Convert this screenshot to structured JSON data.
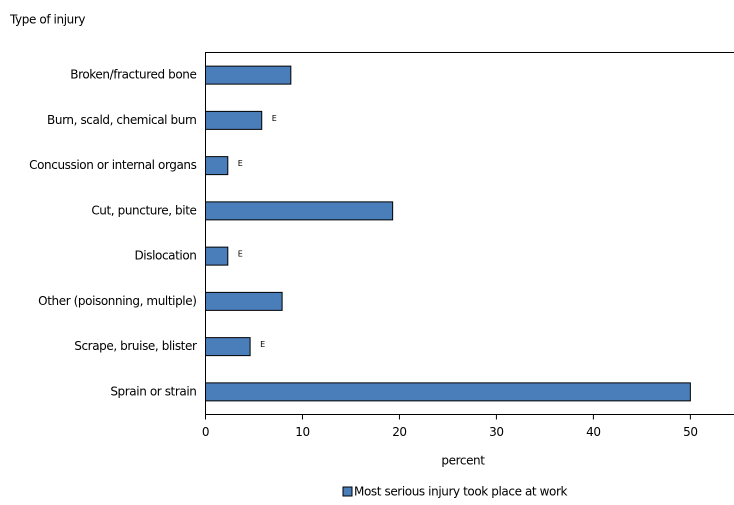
{
  "chart_data": {
    "type": "hbar",
    "y_axis_title": "Type of injury",
    "x_axis_title": "percent",
    "categories": [
      "Broken/fractured bone",
      "Burn, scald, chemical burn",
      "Concussion or internal organs",
      "Cut, puncture, bite",
      "Dislocation",
      "Other (poisonning, multiple)",
      "Scrape, bruise, blister",
      "Sprain or strain"
    ],
    "series": [
      {
        "name": "Most serious injury took place at work",
        "color": "#4a7ebb",
        "values": [
          8.8,
          5.8,
          2.3,
          19.3,
          2.3,
          7.9,
          4.6,
          50.0
        ]
      }
    ],
    "annotations": [
      null,
      "E",
      "E",
      null,
      "E",
      null,
      "E",
      null
    ],
    "xlim": [
      0,
      54.5
    ],
    "xticks": [
      0,
      10,
      20,
      30,
      40,
      50
    ]
  }
}
